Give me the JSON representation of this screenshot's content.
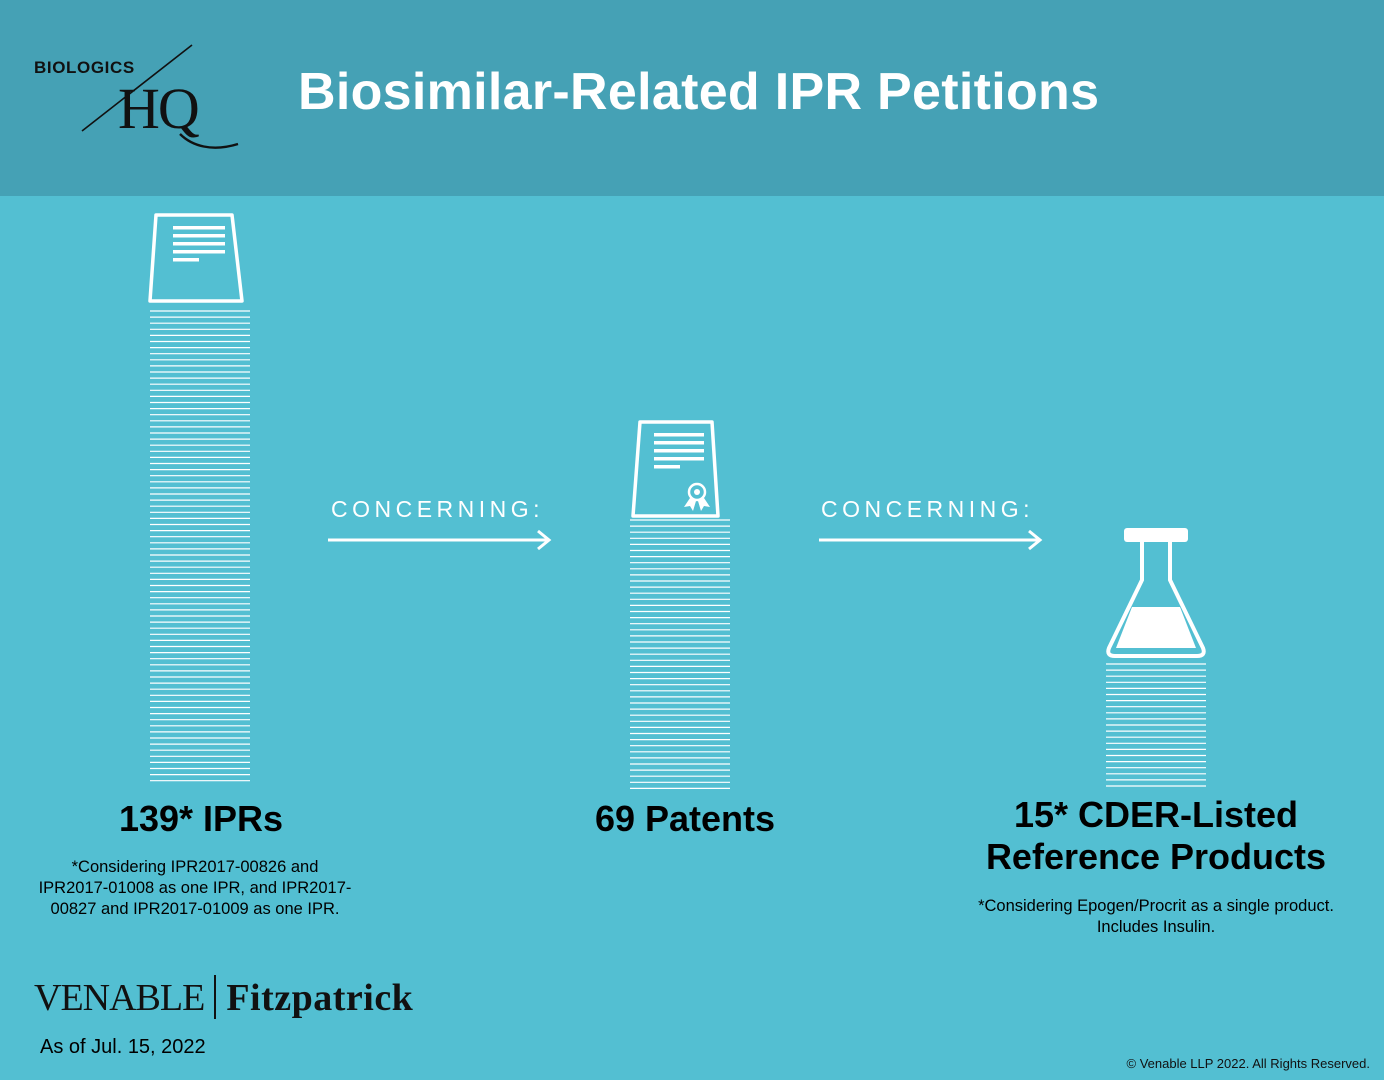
{
  "header": {
    "logo_small": "BIOLOGICS",
    "logo_big": "HQ",
    "title": "Biosimilar-Related IPR Petitions"
  },
  "chart_data": {
    "type": "pictorial-stack",
    "title": "Biosimilar-Related IPR Petitions",
    "items": [
      {
        "label": "139* IPRs",
        "value": 139,
        "icon": "document-icon",
        "note": "*Considering IPR2017-00826 and IPR2017-01008 as one IPR, and IPR2017-00827 and IPR2017-01009 as one IPR."
      },
      {
        "label": "69 Patents",
        "value": 69,
        "icon": "patent-certificate-icon",
        "note": ""
      },
      {
        "label": "15* CDER-Listed Reference Products",
        "value": 15,
        "icon": "flask-icon",
        "note": "*Considering Epogen/Procrit as a single product. Includes Insulin."
      }
    ],
    "connectors": [
      "CONCERNING:",
      "CONCERNING:"
    ]
  },
  "footer": {
    "brand_left": "VENABLE",
    "brand_right": "Fitzpatrick",
    "as_of": "As of Jul. 15, 2022",
    "copyright": "© Venable LLP 2022. All Rights Reserved."
  },
  "colors": {
    "background": "#53bfd2",
    "header": "#45a1b5",
    "lines": "#ffffff",
    "text": "#000000"
  }
}
